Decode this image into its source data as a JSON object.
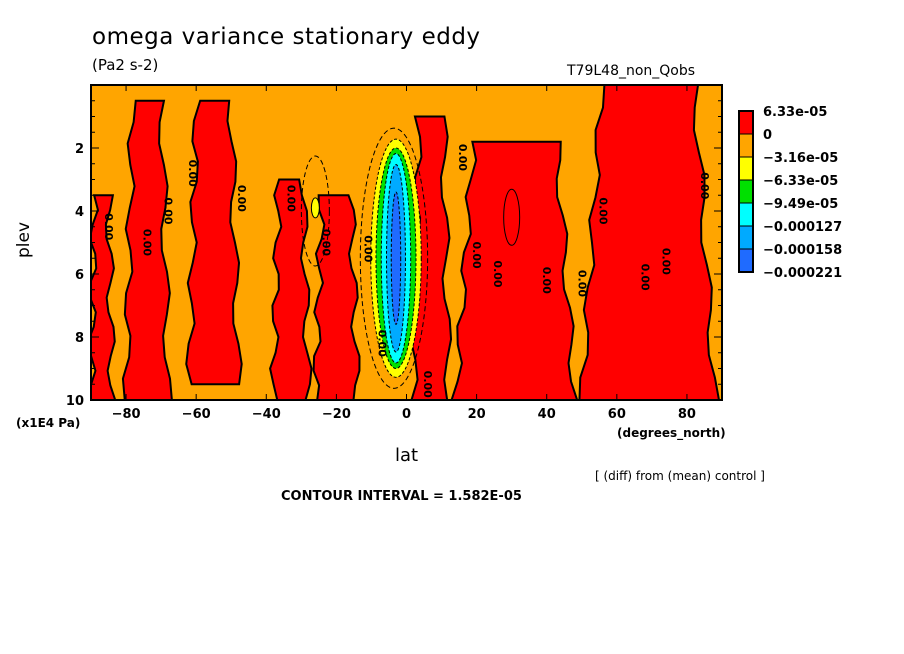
{
  "chart_data": {
    "type": "heatmap",
    "subtype": "filled-contour",
    "title": "omega variance stationary eddy",
    "units": "(Pa2 s-2)",
    "run_label": "T79L48_non_Qobs",
    "xlabel": "lat",
    "xunits": "(degrees_north)",
    "ylabel": "plev",
    "yunits": "(x1E4 Pa)",
    "xlim": [
      -90,
      90
    ],
    "ylim": [
      10,
      0
    ],
    "x_ticks": [
      -80,
      -60,
      -40,
      -20,
      0,
      20,
      40,
      60,
      80
    ],
    "x_tick_labels": [
      "−80",
      "−60",
      "−40",
      "−20",
      "0",
      "20",
      "40",
      "60",
      "80"
    ],
    "y_ticks": [
      2,
      4,
      6,
      8,
      10
    ],
    "y_tick_labels": [
      "2",
      "4",
      "6",
      "8",
      "10"
    ],
    "contour_label": "0.00",
    "legend": {
      "placement": "right",
      "levels": [
        {
          "label": "6.33e-05",
          "color": "#ff0000"
        },
        {
          "label": "0",
          "color": "#ffa500"
        },
        {
          "label": "−3.16e-05",
          "color": "#ffff00"
        },
        {
          "label": "−6.33e-05",
          "color": "#00e000"
        },
        {
          "label": "−9.49e-05",
          "color": "#00ffff"
        },
        {
          "label": "−0.000127",
          "color": "#00aaff"
        },
        {
          "label": "−0.000158",
          "color": "#1f6bff"
        },
        {
          "label": "−0.000221",
          "color": "#ffffff"
        }
      ]
    },
    "footnote": "[ (diff) from (mean) control ]",
    "contour_interval": "CONTOUR INTERVAL = 1.582E-05",
    "positive_regions": [
      {
        "lat": [
          -90,
          -84
        ],
        "plev": [
          3.5,
          10
        ]
      },
      {
        "lat": [
          -80,
          -68
        ],
        "plev": [
          0.5,
          10
        ]
      },
      {
        "lat": [
          -62,
          -48
        ],
        "plev": [
          0.5,
          9.5
        ]
      },
      {
        "lat": [
          -38,
          -28
        ],
        "plev": [
          3,
          10
        ]
      },
      {
        "lat": [
          -26,
          -14
        ],
        "plev": [
          3.5,
          10
        ]
      },
      {
        "lat": [
          2,
          12
        ],
        "plev": [
          1,
          10
        ]
      },
      {
        "lat": [
          14,
          48
        ],
        "plev": [
          1.8,
          10
        ]
      },
      {
        "lat": [
          50,
          88
        ],
        "plev": [
          0,
          10
        ]
      }
    ],
    "negative_core": {
      "lat": [
        -6,
        0
      ],
      "plev": [
        2,
        9
      ],
      "min": -0.000221
    }
  }
}
